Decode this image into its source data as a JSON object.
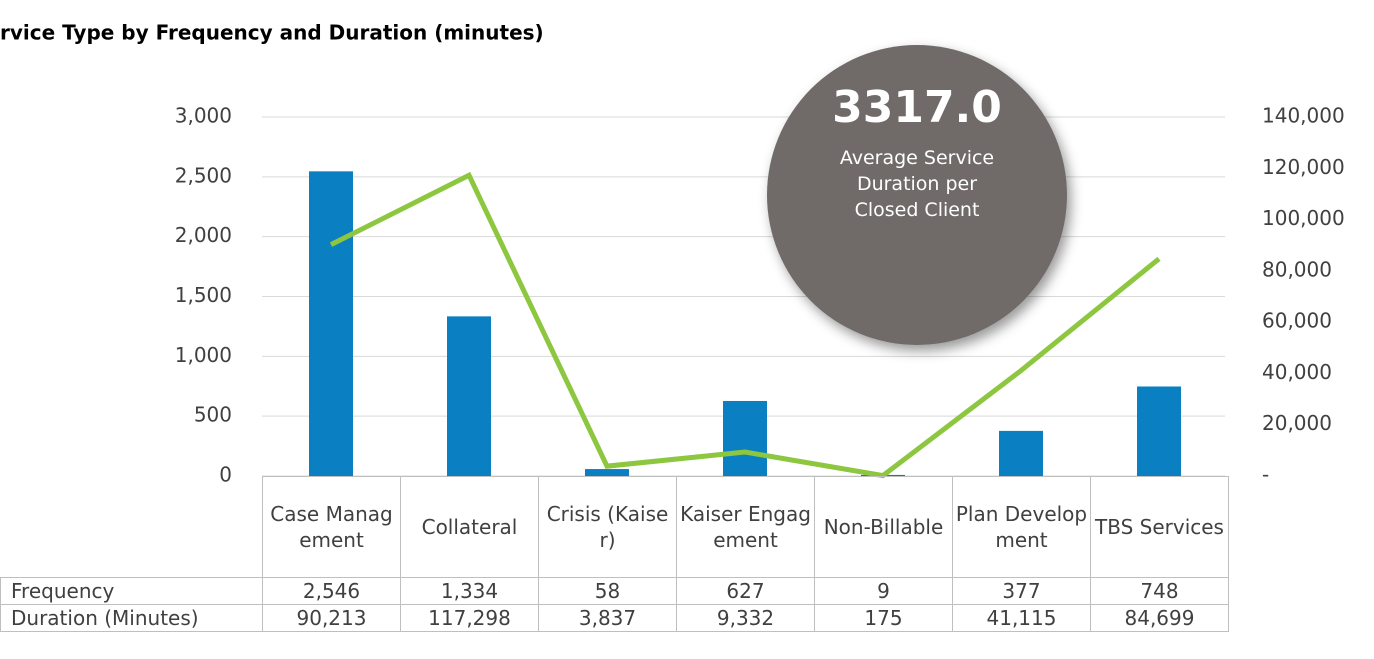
{
  "chart_data": {
    "type": "bar_line",
    "title": "rvice Type by Frequency and Duration (minutes)",
    "categories": [
      "Case Management",
      "Collateral",
      "Crisis (Kaiser)",
      "Kaiser Engagement",
      "Non-Billable",
      "Plan Development",
      "TBS Services"
    ],
    "series": [
      {
        "name": "Frequency",
        "color": "#0a7fc2",
        "values": [
          2546,
          1334,
          58,
          627,
          9,
          377,
          748
        ],
        "value_labels": [
          "2,546",
          "1,334",
          "58",
          "627",
          "9",
          "377",
          "748"
        ]
      },
      {
        "name": "Duration (Minutes)",
        "color": "#8dc63f",
        "axis": "y2",
        "values": [
          90213,
          117298,
          3837,
          9332,
          175,
          41115,
          84699
        ],
        "value_labels": [
          "90,213",
          "117,298",
          "3,837",
          "9,332",
          "175",
          "41,115",
          "84,699"
        ]
      }
    ],
    "ylim": [
      0,
      3000
    ],
    "yticks": [
      0,
      {
        "value": 500,
        "label": "500"
      },
      {
        "value": 1000,
        "label": "1,000"
      },
      {
        "value": 1500,
        "label": "1,500"
      },
      {
        "value": 2000,
        "label": "2,000"
      },
      {
        "value": 2500,
        "label": "2,500"
      },
      {
        "value": 3000,
        "label": "3,000"
      }
    ],
    "y2lim": [
      0,
      140000
    ],
    "y2ticks": [
      {
        "value": 0,
        "label": "-"
      },
      {
        "value": 20000,
        "label": "20,000"
      },
      {
        "value": 40000,
        "label": "40,000"
      },
      {
        "value": 60000,
        "label": "60,000"
      },
      {
        "value": 80000,
        "label": "80,000"
      },
      {
        "value": 100000,
        "label": "100,000"
      },
      {
        "value": 120000,
        "label": "120,000"
      },
      {
        "value": 140000,
        "label": "140,000"
      }
    ],
    "grid": true,
    "annotation": {
      "value": "3317.0",
      "text": "Average Service Duration per Closed Client"
    }
  }
}
